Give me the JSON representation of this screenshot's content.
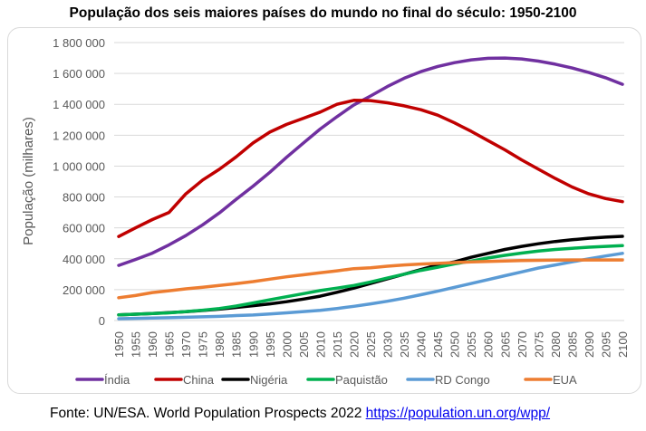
{
  "chart_data": {
    "type": "line",
    "title": "População dos seis maiores países do mundo no final do século: 1950-2100",
    "xlabel": "",
    "ylabel": "População (milhares)",
    "ylim": [
      0,
      1800000
    ],
    "xlim": [
      1950,
      2100
    ],
    "grid": true,
    "legend_position": "bottom",
    "y_ticks": [
      "0",
      "200 000",
      "400 000",
      "600 000",
      "800 000",
      "1 000 000",
      "1 200 000",
      "1 400 000",
      "1 600 000",
      "1 800 000"
    ],
    "y_tick_values": [
      0,
      200000,
      400000,
      600000,
      800000,
      1000000,
      1200000,
      1400000,
      1600000,
      1800000
    ],
    "x_ticks": [
      "1950",
      "1955",
      "1960",
      "1965",
      "1970",
      "1975",
      "1980",
      "1985",
      "1990",
      "1995",
      "2000",
      "2005",
      "2010",
      "2015",
      "2020",
      "2025",
      "2030",
      "2035",
      "2040",
      "2045",
      "2050",
      "2055",
      "2060",
      "2065",
      "2070",
      "2075",
      "2080",
      "2085",
      "2090",
      "2095",
      "2100"
    ],
    "x": [
      1950,
      1955,
      1960,
      1965,
      1970,
      1975,
      1980,
      1985,
      1990,
      1995,
      2000,
      2005,
      2010,
      2015,
      2020,
      2025,
      2030,
      2035,
      2040,
      2045,
      2050,
      2055,
      2060,
      2065,
      2070,
      2075,
      2080,
      2085,
      2090,
      2095,
      2100
    ],
    "series": [
      {
        "name": "Índia",
        "color": "#7030a0",
        "values": [
          357000,
          395000,
          436000,
          490000,
          550000,
          620000,
          697000,
          785000,
          870000,
          960000,
          1057000,
          1150000,
          1240000,
          1320000,
          1396000,
          1454000,
          1515000,
          1569000,
          1612000,
          1645000,
          1670000,
          1688000,
          1698000,
          1700000,
          1694000,
          1680000,
          1660000,
          1635000,
          1606000,
          1572000,
          1530000
        ]
      },
      {
        "name": "China",
        "color": "#c00000",
        "values": [
          544000,
          600000,
          654000,
          700000,
          820000,
          910000,
          980000,
          1060000,
          1150000,
          1220000,
          1270000,
          1310000,
          1350000,
          1400000,
          1426000,
          1424000,
          1410000,
          1390000,
          1365000,
          1330000,
          1280000,
          1225000,
          1165000,
          1105000,
          1040000,
          980000,
          920000,
          865000,
          820000,
          790000,
          770000
        ]
      },
      {
        "name": "Nigéria",
        "color": "#000000",
        "values": [
          37000,
          41000,
          45000,
          51000,
          57000,
          65000,
          74000,
          85000,
          96000,
          108000,
          122000,
          139000,
          158000,
          183000,
          210000,
          240000,
          270000,
          300000,
          330000,
          360000,
          380000,
          410000,
          435000,
          460000,
          480000,
          497000,
          512000,
          523000,
          533000,
          540000,
          545000
        ]
      },
      {
        "name": "Paquistão",
        "color": "#00b050",
        "values": [
          37000,
          41000,
          45000,
          50000,
          58000,
          67000,
          78000,
          94000,
          114000,
          134000,
          154000,
          174000,
          194000,
          210000,
          227000,
          250000,
          275000,
          300000,
          325000,
          345000,
          367000,
          385000,
          405000,
          422000,
          437000,
          450000,
          460000,
          468000,
          475000,
          480000,
          485000
        ]
      },
      {
        "name": "RD Congo",
        "color": "#5b9bd5",
        "values": [
          12000,
          14000,
          16000,
          18000,
          21000,
          24000,
          27000,
          32000,
          36000,
          43000,
          50000,
          58000,
          66000,
          78000,
          92000,
          108000,
          125000,
          145000,
          167000,
          190000,
          215000,
          240000,
          265000,
          290000,
          315000,
          340000,
          360000,
          380000,
          400000,
          418000,
          435000
        ]
      },
      {
        "name": "EUA",
        "color": "#ed7d31",
        "values": [
          148000,
          162000,
          181000,
          193000,
          205000,
          216000,
          227000,
          239000,
          252000,
          268000,
          283000,
          296000,
          309000,
          322000,
          336000,
          342000,
          352000,
          360000,
          366000,
          370000,
          375000,
          380000,
          383000,
          386000,
          388000,
          390000,
          391000,
          392000,
          392000,
          392000,
          392000
        ]
      }
    ]
  },
  "source": {
    "text": "Fonte: UN/ESA. World Population Prospects 2022 ",
    "link": "https://population.un.org/wpp/"
  }
}
